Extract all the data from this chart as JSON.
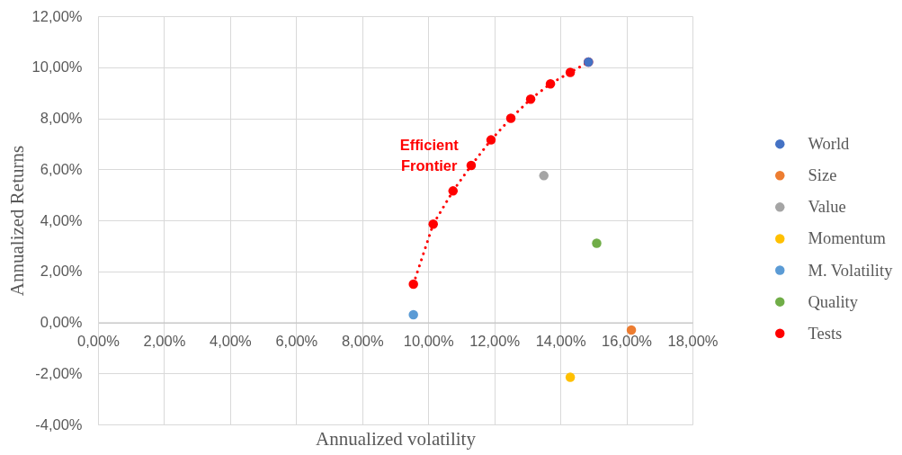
{
  "chart_data": {
    "type": "scatter",
    "xlabel": "Annualized volatility",
    "ylabel": "Annualized Returns",
    "xlim": [
      0,
      18
    ],
    "xticks": [
      {
        "value": 0,
        "label": "0,00%"
      },
      {
        "value": 2,
        "label": "2,00%"
      },
      {
        "value": 4,
        "label": "4,00%"
      },
      {
        "value": 6,
        "label": "6,00%"
      },
      {
        "value": 8,
        "label": "8,00%"
      },
      {
        "value": 10,
        "label": "10,00%"
      },
      {
        "value": 12,
        "label": "12,00%"
      },
      {
        "value": 14,
        "label": "14,00%"
      },
      {
        "value": 16,
        "label": "16,00%"
      },
      {
        "value": 18,
        "label": "18,00%"
      }
    ],
    "ylim": [
      -4,
      12
    ],
    "yticks": [
      {
        "value": -4,
        "label": "-4,00%"
      },
      {
        "value": -2,
        "label": "-2,00%"
      },
      {
        "value": 0,
        "label": "0,00%"
      },
      {
        "value": 2,
        "label": "2,00%"
      },
      {
        "value": 4,
        "label": "4,00%"
      },
      {
        "value": 6,
        "label": "6,00%"
      },
      {
        "value": 8,
        "label": "8,00%"
      },
      {
        "value": 10,
        "label": "10,00%"
      },
      {
        "value": 12,
        "label": "12,00%"
      }
    ],
    "grid": true,
    "legend": "right",
    "marker": "circle",
    "line_style": "dotted",
    "annotations": [
      "Efficient Frontier"
    ],
    "series": [
      {
        "name": "World",
        "color": "#4472c4",
        "x": [
          14.85
        ],
        "values": [
          10.2
        ]
      },
      {
        "name": "Size",
        "color": "#ed7d31",
        "x": [
          16.15
        ],
        "values": [
          -0.3
        ]
      },
      {
        "name": "Value",
        "color": "#a5a5a5",
        "x": [
          13.5
        ],
        "values": [
          5.75
        ]
      },
      {
        "name": "Momentum",
        "color": "#ffc000",
        "x": [
          14.3
        ],
        "values": [
          -2.15
        ]
      },
      {
        "name": "M. Volatility",
        "color": "#5b9bd5",
        "x": [
          9.55
        ],
        "values": [
          0.3
        ]
      },
      {
        "name": "Quality",
        "color": "#70ad47",
        "x": [
          15.1
        ],
        "values": [
          3.1
        ]
      },
      {
        "name": "Tests",
        "color": "#ff0000",
        "type": "line",
        "x": [
          9.55,
          10.15,
          10.75,
          11.3,
          11.9,
          12.5,
          13.1,
          13.7,
          14.3,
          14.85
        ],
        "values": [
          1.5,
          3.85,
          5.15,
          6.15,
          7.15,
          8.0,
          8.75,
          9.35,
          9.8,
          10.2
        ]
      }
    ]
  }
}
